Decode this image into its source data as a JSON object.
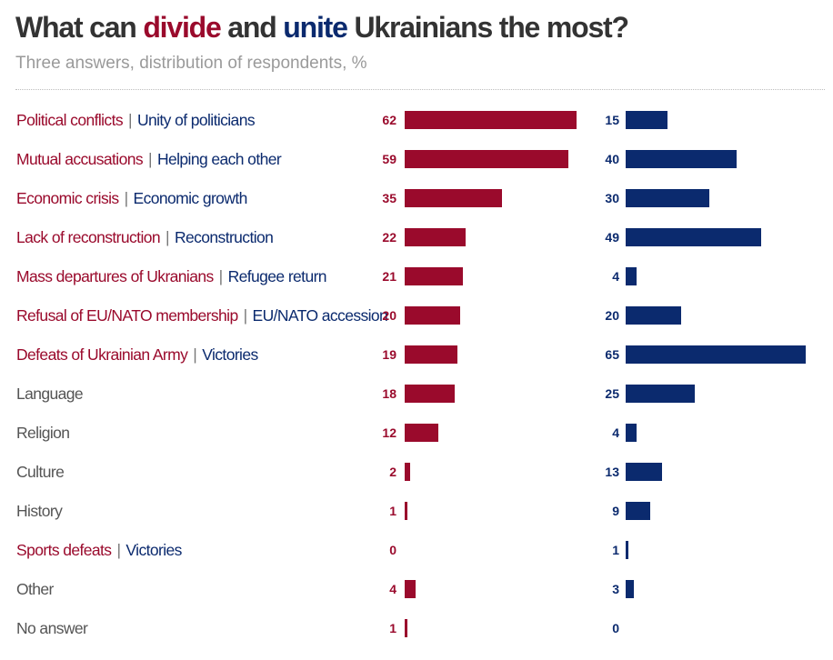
{
  "title": {
    "part1": "What can ",
    "divide": "divide",
    "part2": " and ",
    "unite": "unite",
    "part3": " Ukrainians the most?"
  },
  "subtitle": "Three answers, distribution of respondents, %",
  "colors": {
    "divide": "#9a0a2c",
    "unite": "#0b2a6e",
    "neutral": "#555555"
  },
  "chart_data": {
    "type": "bar",
    "orientation": "horizontal",
    "series": [
      {
        "name": "divide",
        "values": [
          62,
          59,
          35,
          22,
          21,
          20,
          19,
          18,
          12,
          2,
          1,
          0,
          4,
          1
        ]
      },
      {
        "name": "unite",
        "values": [
          15,
          40,
          30,
          49,
          4,
          20,
          65,
          25,
          4,
          13,
          9,
          1,
          3,
          0
        ]
      }
    ],
    "categories": [
      {
        "divide_label": "Political conflicts",
        "unite_label": "Unity of politicians"
      },
      {
        "divide_label": "Mutual accusations",
        "unite_label": "Helping each other"
      },
      {
        "divide_label": "Economic crisis",
        "unite_label": "Economic growth"
      },
      {
        "divide_label": "Lack of reconstruction",
        "unite_label": "Reconstruction"
      },
      {
        "divide_label": "Mass departures of Ukranians",
        "unite_label": "Refugee return"
      },
      {
        "divide_label": "Refusal of EU/NATO membership",
        "unite_label": "EU/NATO accession"
      },
      {
        "divide_label": "Defeats of Ukrainian Army",
        "unite_label": "Victories"
      },
      {
        "label": "Language"
      },
      {
        "label": "Religion"
      },
      {
        "label": "Culture"
      },
      {
        "label": "History"
      },
      {
        "divide_label": "Sports defeats",
        "unite_label": "Victories"
      },
      {
        "label": "Other"
      },
      {
        "label": "No answer"
      }
    ],
    "separator": "|",
    "xlim": [
      0,
      65
    ]
  }
}
